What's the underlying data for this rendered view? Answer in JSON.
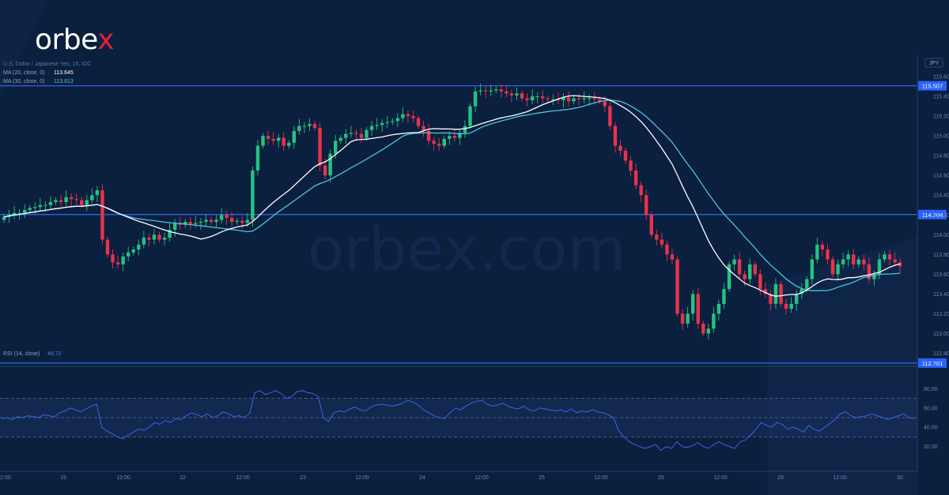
{
  "brand": {
    "logo_main": "orbe",
    "logo_x": "x",
    "watermark": "orbex.com"
  },
  "legend": {
    "symbol_line": "U.S. Dollar / Japanese Yen, 1h, IDC",
    "ma20_label": "MA (20, close, 0)",
    "ma20_value": "113.645",
    "ma30_label": "MA (30, close, 0)",
    "ma30_value": "113.613",
    "rsi_label": "RSI (14, close)",
    "rsi_value": "48.72",
    "currency": "JPY"
  },
  "colors": {
    "background": "#0b1f3f",
    "up": "#26c281",
    "down": "#e8334a",
    "ma20": "#ffffff",
    "ma30": "#4fc3d9",
    "level_line": "#2f6cf2",
    "rsi_line": "#3a66e6",
    "rsi_band": "#1a2f5c"
  },
  "chart_data": [
    {
      "type": "candlestick",
      "ylim": [
        112.7,
        115.8
      ],
      "y_ticks": [
        "115.600",
        "115.400",
        "115.200",
        "115.000",
        "114.800",
        "114.600",
        "114.400",
        "114.200",
        "114.000",
        "113.800",
        "113.600",
        "113.400",
        "113.200",
        "113.000",
        "112.800"
      ],
      "x_ticks": [
        "12:00",
        "19",
        "12:00",
        "22",
        "12:00",
        "23",
        "12:00",
        "24",
        "12:00",
        "25",
        "12:00",
        "26",
        "12:00",
        "29",
        "12:00",
        "30"
      ],
      "levels": [
        {
          "label": "115.507",
          "value": 115.507
        },
        {
          "label": "114.204",
          "value": 114.204
        },
        {
          "label": "112.701",
          "value": 112.701
        }
      ],
      "close": [
        114.18,
        114.2,
        114.22,
        114.22,
        114.25,
        114.27,
        114.28,
        114.3,
        114.3,
        114.33,
        114.35,
        114.33,
        114.38,
        114.36,
        114.35,
        114.3,
        114.35,
        114.4,
        114.45,
        113.95,
        113.8,
        113.72,
        113.7,
        113.78,
        113.82,
        113.85,
        113.9,
        113.97,
        113.95,
        114.0,
        113.95,
        113.97,
        114.05,
        114.12,
        114.1,
        114.13,
        114.11,
        114.12,
        114.13,
        114.15,
        114.13,
        114.15,
        114.2,
        114.17,
        114.13,
        114.14,
        114.12,
        114.15,
        114.65,
        114.9,
        115.0,
        114.97,
        114.95,
        114.98,
        114.9,
        114.93,
        115.05,
        115.1,
        115.1,
        115.12,
        115.08,
        114.7,
        114.6,
        114.82,
        114.95,
        114.98,
        115.02,
        115.03,
        115.02,
        114.98,
        115.06,
        115.1,
        115.11,
        115.13,
        115.14,
        115.15,
        115.18,
        115.22,
        115.2,
        115.18,
        115.1,
        115.05,
        114.95,
        114.92,
        114.9,
        114.97,
        115.0,
        114.98,
        115.03,
        115.1,
        115.3,
        115.45,
        115.46,
        115.45,
        115.46,
        115.47,
        115.45,
        115.43,
        115.41,
        115.43,
        115.38,
        115.36,
        115.4,
        115.4,
        115.38,
        115.37,
        115.37,
        115.36,
        115.39,
        115.35,
        115.38,
        115.37,
        115.38,
        115.38,
        115.37,
        115.35,
        115.3,
        115.1,
        114.9,
        114.85,
        114.75,
        114.65,
        114.5,
        114.4,
        114.2,
        114.0,
        113.95,
        113.9,
        113.8,
        113.75,
        113.2,
        113.1,
        113.2,
        113.4,
        113.1,
        113.0,
        113.05,
        113.2,
        113.3,
        113.45,
        113.7,
        113.75,
        113.6,
        113.55,
        113.7,
        113.6,
        113.45,
        113.4,
        113.3,
        113.5,
        113.3,
        113.25,
        113.3,
        113.4,
        113.45,
        113.55,
        113.75,
        113.9,
        113.85,
        113.75,
        113.6,
        113.7,
        113.75,
        113.8,
        113.7,
        113.75,
        113.7,
        113.55,
        113.6,
        113.75,
        113.8,
        113.75,
        113.72,
        113.68
      ],
      "series": [
        {
          "name": "MA (20, close, 0)",
          "last": 113.645
        },
        {
          "name": "MA (30, close, 0)",
          "last": 113.613
        }
      ]
    },
    {
      "type": "line",
      "title": "RSI (14, close)",
      "ylim": [
        0,
        100
      ],
      "y_ticks": [
        "80.00",
        "60.00",
        "40.00",
        "20.00"
      ],
      "band": [
        30,
        70
      ],
      "midline": 50,
      "values": [
        49,
        50,
        48,
        51,
        50,
        52,
        51,
        50,
        53,
        52,
        51,
        55,
        57,
        60,
        58,
        56,
        59,
        62,
        64,
        40,
        36,
        33,
        30,
        28,
        32,
        35,
        38,
        37,
        40,
        45,
        43,
        47,
        45,
        49,
        48,
        52,
        55,
        53,
        51,
        54,
        50,
        52,
        56,
        54,
        51,
        52,
        50,
        54,
        76,
        78,
        74,
        76,
        78,
        75,
        70,
        72,
        77,
        78,
        76,
        75,
        72,
        50,
        46,
        55,
        57,
        56,
        59,
        61,
        58,
        57,
        61,
        63,
        64,
        63,
        62,
        63,
        65,
        68,
        66,
        63,
        58,
        55,
        52,
        50,
        49,
        55,
        60,
        58,
        62,
        65,
        67,
        68,
        64,
        62,
        63,
        65,
        62,
        60,
        59,
        62,
        58,
        57,
        60,
        59,
        58,
        57,
        58,
        56,
        59,
        55,
        57,
        56,
        58,
        56,
        55,
        53,
        50,
        36,
        30,
        25,
        22,
        20,
        18,
        20,
        22,
        16,
        20,
        18,
        25,
        20,
        19,
        21,
        24,
        20,
        18,
        22,
        25,
        22,
        20,
        18,
        25,
        27,
        32,
        38,
        45,
        42,
        40,
        45,
        43,
        38,
        40,
        38,
        35,
        42,
        38,
        36,
        40,
        44,
        48,
        54,
        56,
        52,
        50,
        51,
        52,
        54,
        52,
        50,
        48,
        50,
        52,
        54,
        50,
        49
      ]
    }
  ]
}
